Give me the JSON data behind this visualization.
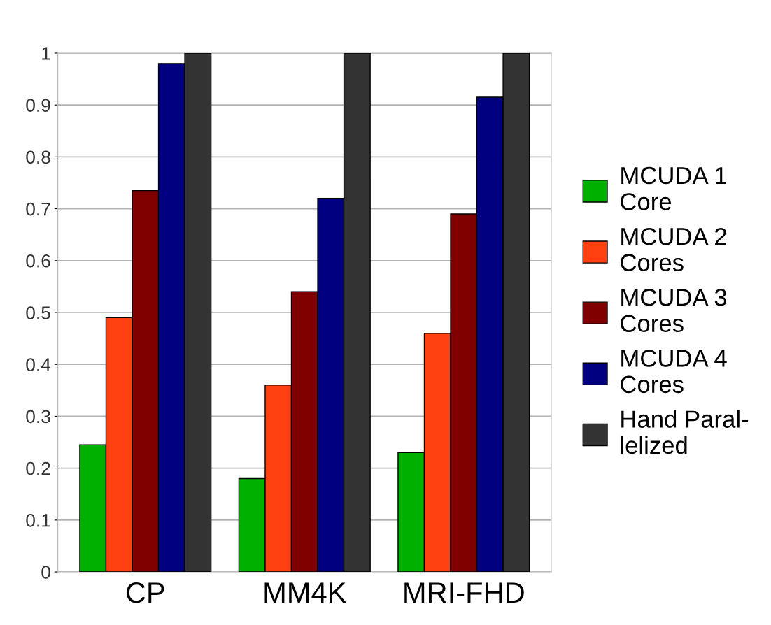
{
  "chart_data": {
    "type": "bar",
    "categories": [
      "CP",
      "MM4K",
      "MRI-FHD"
    ],
    "series": [
      {
        "name": "MCUDA 1\nCore",
        "color": "#00b000",
        "values": [
          0.245,
          0.18,
          0.23
        ]
      },
      {
        "name": "MCUDA 2\nCores",
        "color": "#ff4010",
        "values": [
          0.49,
          0.36,
          0.46
        ]
      },
      {
        "name": "MCUDA 3\nCores",
        "color": "#800000",
        "values": [
          0.735,
          0.54,
          0.69
        ]
      },
      {
        "name": "MCUDA 4\nCores",
        "color": "#000080",
        "values": [
          0.98,
          0.72,
          0.915
        ]
      },
      {
        "name": "Hand Paral-\nlelized",
        "color": "#333333",
        "values": [
          1,
          1,
          1
        ]
      }
    ],
    "ylim": [
      0,
      1
    ],
    "yticks": [
      0,
      0.1,
      0.2,
      0.3,
      0.4,
      0.5,
      0.6,
      0.7,
      0.8,
      0.9,
      1
    ],
    "grid": "y",
    "legend": "right"
  }
}
